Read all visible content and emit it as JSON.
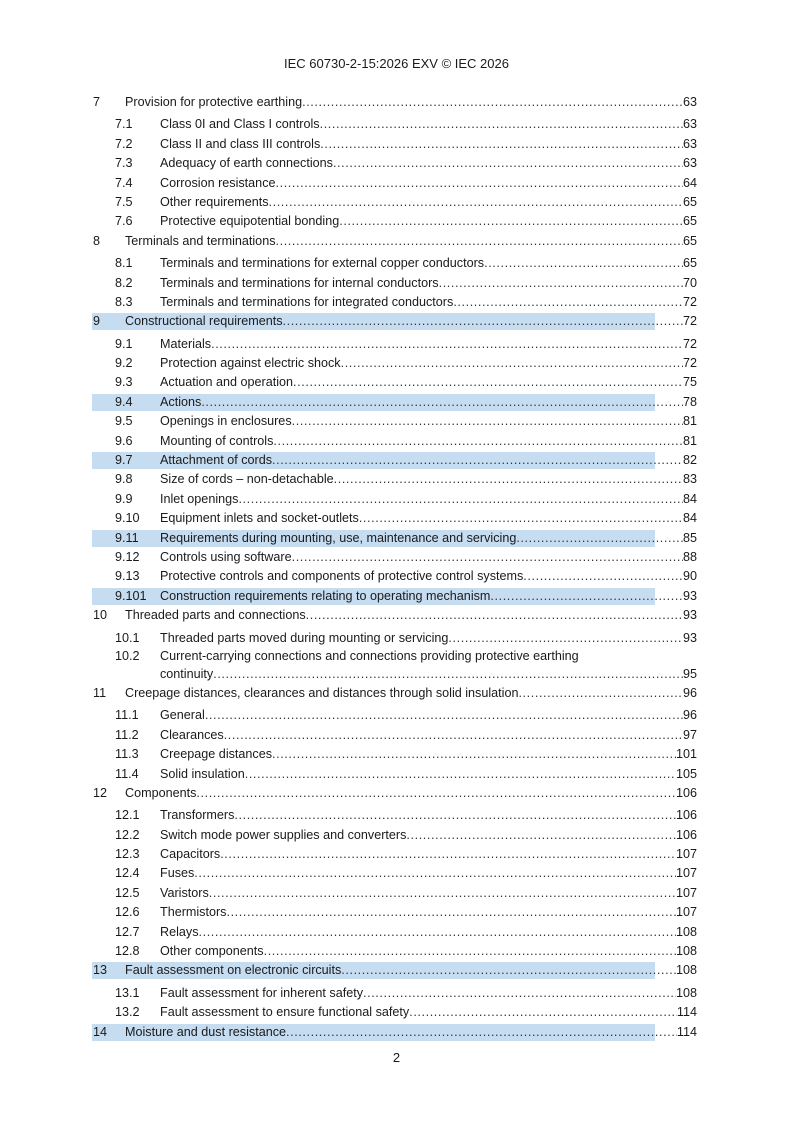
{
  "header": "IEC 60730-2-15:2026 EXV © IEC 2026",
  "footer_page": "2",
  "highlight_color": "#c6dcf0",
  "toc": [
    {
      "num": "7",
      "title": "Provision for protective earthing",
      "page": "63",
      "level": 1
    },
    {
      "num": "7.1",
      "title": "Class 0I and Class I controls",
      "page": "63",
      "level": 2
    },
    {
      "num": "7.2",
      "title": "Class II and class III controls",
      "page": "63",
      "level": 2
    },
    {
      "num": "7.3",
      "title": "Adequacy of earth connections",
      "page": "63",
      "level": 2
    },
    {
      "num": "7.4",
      "title": "Corrosion resistance",
      "page": "64",
      "level": 2
    },
    {
      "num": "7.5",
      "title": "Other requirements",
      "page": "65",
      "level": 2
    },
    {
      "num": "7.6",
      "title": "Protective equipotential bonding",
      "page": "65",
      "level": 2
    },
    {
      "num": "8",
      "title": "Terminals and terminations",
      "page": "65",
      "level": 1
    },
    {
      "num": "8.1",
      "title": "Terminals and terminations for external copper conductors",
      "page": "65",
      "level": 2
    },
    {
      "num": "8.2",
      "title": "Terminals and terminations for internal conductors",
      "page": "70",
      "level": 2
    },
    {
      "num": "8.3",
      "title": "Terminals and terminations for integrated conductors",
      "page": "72",
      "level": 2
    },
    {
      "num": "9",
      "title": "Constructional requirements",
      "page": "72",
      "level": 1,
      "highlighted": true
    },
    {
      "num": "9.1",
      "title": "Materials",
      "page": "72",
      "level": 2
    },
    {
      "num": "9.2",
      "title": "Protection against electric shock",
      "page": "72",
      "level": 2
    },
    {
      "num": "9.3",
      "title": "Actuation and operation",
      "page": "75",
      "level": 2
    },
    {
      "num": "9.4",
      "title": "Actions",
      "page": "78",
      "level": 2,
      "highlighted": true
    },
    {
      "num": "9.5",
      "title": "Openings in enclosures",
      "page": "81",
      "level": 2
    },
    {
      "num": "9.6",
      "title": "Mounting of controls",
      "page": "81",
      "level": 2
    },
    {
      "num": "9.7",
      "title": "Attachment of cords",
      "page": "82",
      "level": 2,
      "highlighted": true
    },
    {
      "num": "9.8",
      "title": "Size of cords – non-detachable",
      "page": "83",
      "level": 2
    },
    {
      "num": "9.9",
      "title": "Inlet openings",
      "page": "84",
      "level": 2
    },
    {
      "num": "9.10",
      "title": "Equipment inlets and socket-outlets",
      "page": "84",
      "level": 2
    },
    {
      "num": "9.11",
      "title": "Requirements during mounting, use, maintenance and servicing",
      "page": "85",
      "level": 2,
      "highlighted": true
    },
    {
      "num": "9.12",
      "title": "Controls using software",
      "page": "88",
      "level": 2
    },
    {
      "num": "9.13",
      "title": "Protective controls and components of protective control systems",
      "page": "90",
      "level": 2
    },
    {
      "num": "9.101",
      "title": "Construction requirements relating to operating mechanism",
      "page": "93",
      "level": 2,
      "highlighted": true
    },
    {
      "num": "10",
      "title": "Threaded parts and connections",
      "page": "93",
      "level": 1
    },
    {
      "num": "10.1",
      "title": "Threaded parts moved during mounting or servicing",
      "page": "93",
      "level": 2
    },
    {
      "num": "10.2",
      "title": "Current-carrying connections and connections providing protective earthing",
      "title_line2": "continuity",
      "page": "95",
      "level": 2
    },
    {
      "num": "11",
      "title": "Creepage distances, clearances and distances through solid insulation",
      "page": "96",
      "level": 1
    },
    {
      "num": "11.1",
      "title": "General",
      "page": "96",
      "level": 2
    },
    {
      "num": "11.2",
      "title": "Clearances",
      "page": "97",
      "level": 2
    },
    {
      "num": "11.3",
      "title": "Creepage distances",
      "page": "101",
      "level": 2
    },
    {
      "num": "11.4",
      "title": "Solid insulation",
      "page": "105",
      "level": 2
    },
    {
      "num": "12",
      "title": "Components",
      "page": "106",
      "level": 1
    },
    {
      "num": "12.1",
      "title": "Transformers",
      "page": "106",
      "level": 2
    },
    {
      "num": "12.2",
      "title": "Switch mode power supplies and converters",
      "page": "106",
      "level": 2
    },
    {
      "num": "12.3",
      "title": "Capacitors",
      "page": "107",
      "level": 2
    },
    {
      "num": "12.4",
      "title": "Fuses",
      "page": "107",
      "level": 2
    },
    {
      "num": "12.5",
      "title": "Varistors",
      "page": "107",
      "level": 2
    },
    {
      "num": "12.6",
      "title": "Thermistors",
      "page": "107",
      "level": 2
    },
    {
      "num": "12.7",
      "title": "Relays",
      "page": "108",
      "level": 2
    },
    {
      "num": "12.8",
      "title": "Other components",
      "page": "108",
      "level": 2
    },
    {
      "num": "13",
      "title": "Fault assessment on electronic circuits",
      "page": "108",
      "level": 1,
      "highlighted": true
    },
    {
      "num": "13.1",
      "title": "Fault assessment for inherent safety",
      "page": "108",
      "level": 2
    },
    {
      "num": "13.2",
      "title": "Fault assessment to ensure functional safety",
      "page": "114",
      "level": 2
    },
    {
      "num": "14",
      "title": "Moisture and dust resistance",
      "page": "114",
      "level": 1,
      "highlighted": true
    }
  ]
}
